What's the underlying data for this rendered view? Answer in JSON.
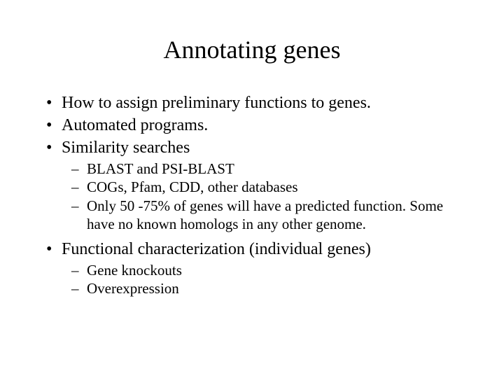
{
  "title": "Annotating genes",
  "bullets": [
    {
      "text": "How to assign preliminary functions to genes."
    },
    {
      "text": "Automated programs."
    },
    {
      "text": "Similarity searches",
      "sub": [
        "BLAST and PSI-BLAST",
        "COGs, Pfam, CDD, other databases",
        "Only 50 -75% of genes will have a predicted function. Some have no known homologs in any other genome."
      ]
    },
    {
      "text": "Functional characterization (individual genes)",
      "sub": [
        "Gene knockouts",
        "Overexpression"
      ]
    }
  ],
  "colors": {
    "background": "#ffffff",
    "text": "#000000"
  },
  "typography": {
    "family": "Times New Roman",
    "title_fontsize": 36,
    "bullet_fontsize": 24,
    "sub_fontsize": 21
  }
}
